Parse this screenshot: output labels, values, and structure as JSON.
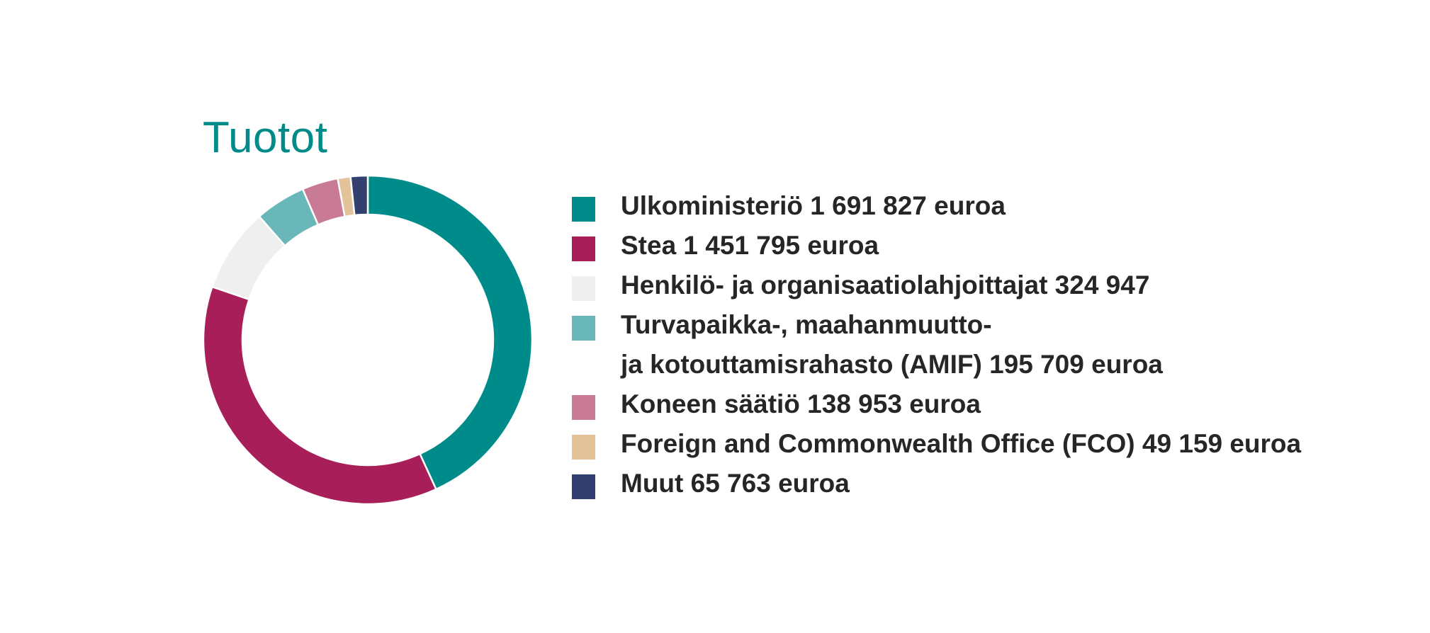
{
  "chart_data": {
    "type": "pie",
    "variant": "donut",
    "title": "Tuotot",
    "start_angle": "top, clockwise",
    "legend_position": "right",
    "slices": [
      {
        "label": [
          "Ulkoministeriö 1 691 827 euroa"
        ],
        "value": 1691827,
        "color": "#008b8b"
      },
      {
        "label": [
          "Stea 1 451 795 euroa"
        ],
        "value": 1451795,
        "color": "#a81e58"
      },
      {
        "label": [
          "Henkilö- ja organisaatiolahjoittajat 324 947"
        ],
        "value": 324947,
        "color": "#efefef"
      },
      {
        "label": [
          "Turvapaikka-, maahanmuutto-",
          "ja kotouttamisrahasto (AMIF) 195 709 euroa"
        ],
        "value": 195709,
        "color": "#6ab7ba"
      },
      {
        "label": [
          "Koneen säätiö 138 953 euroa"
        ],
        "value": 138953,
        "color": "#c97b95"
      },
      {
        "label": [
          "Foreign and Commonwealth Office (FCO) 49 159 euroa"
        ],
        "value": 49159,
        "color": "#e4c39a"
      },
      {
        "label": [
          "Muut 65 763 euroa"
        ],
        "value": 65763,
        "color": "#33406f"
      }
    ]
  }
}
